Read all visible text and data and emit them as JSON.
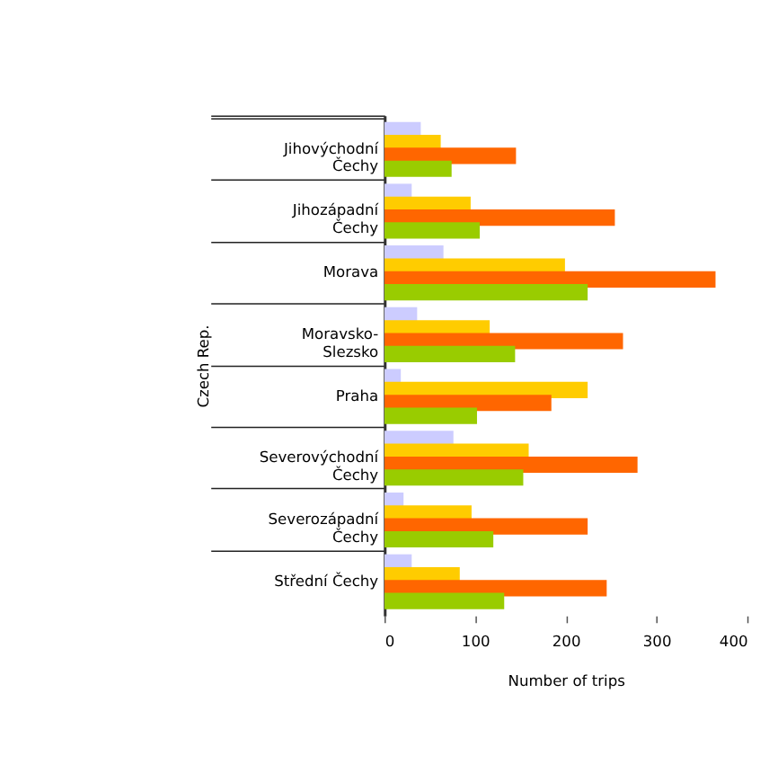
{
  "chart_data": {
    "type": "bar",
    "orientation": "horizontal",
    "xlabel": "Number of trips",
    "ylabel": "Czech Rep.",
    "categories": [
      "Jihovýchodní\nČechy",
      "Jihozápadní\nČechy",
      "Morava",
      "Moravsko-\nSlezsko",
      "Praha",
      "Severovýchodní\nČechy",
      "Severozápadní\nČechy",
      "Střední Čechy"
    ],
    "series": [
      {
        "color": "#ccccff",
        "values": [
          40,
          30,
          65,
          36,
          18,
          76,
          21,
          30
        ]
      },
      {
        "color": "#ffcc00",
        "values": [
          62,
          95,
          199,
          116,
          224,
          159,
          96,
          83
        ]
      },
      {
        "color": "#ff6600",
        "values": [
          145,
          254,
          365,
          263,
          184,
          279,
          224,
          245
        ]
      },
      {
        "color": "#99cc00",
        "values": [
          74,
          105,
          224,
          144,
          102,
          153,
          120,
          132
        ]
      }
    ],
    "xlim": [
      0,
      400
    ],
    "xticks": [
      0,
      100,
      200,
      300,
      400
    ],
    "grid": false,
    "legend": false
  }
}
